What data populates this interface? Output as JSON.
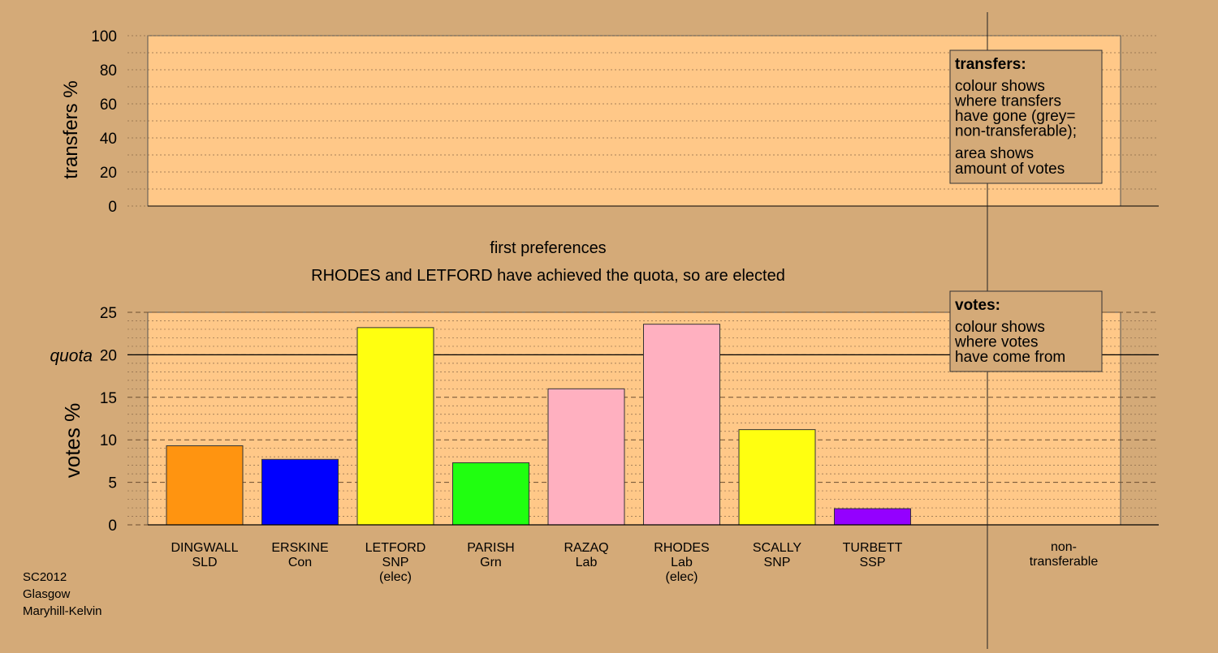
{
  "chart_data": [
    {
      "type": "area",
      "ylabel": "transfers %",
      "ylim": [
        0,
        100
      ],
      "yticks": [
        0,
        20,
        40,
        60,
        80,
        100
      ],
      "grid": true,
      "legend": {
        "title": "transfers:",
        "lines1": [
          "colour shows",
          "where transfers",
          "have gone (grey=",
          "non-transferable);"
        ],
        "lines2": [
          "area shows",
          "amount of votes"
        ]
      },
      "values": []
    },
    {
      "type": "bar",
      "ylabel": "votes %",
      "ylim": [
        0,
        25
      ],
      "yticks": [
        0,
        5,
        10,
        15,
        20,
        25
      ],
      "quota_label": "quota",
      "quota_value": 20,
      "grid": true,
      "categories": [
        {
          "name": "DINGWALL",
          "party": "SLD",
          "note": ""
        },
        {
          "name": "ERSKINE",
          "party": "Con",
          "note": ""
        },
        {
          "name": "LETFORD",
          "party": "SNP",
          "note": "(elec)"
        },
        {
          "name": "PARISH",
          "party": "Grn",
          "note": ""
        },
        {
          "name": "RAZAQ",
          "party": "Lab",
          "note": ""
        },
        {
          "name": "RHODES",
          "party": "Lab",
          "note": "(elec)"
        },
        {
          "name": "SCALLY",
          "party": "SNP",
          "note": ""
        },
        {
          "name": "TURBETT",
          "party": "SSP",
          "note": ""
        }
      ],
      "values": [
        9.3,
        7.7,
        23.2,
        7.3,
        16.0,
        23.6,
        11.2,
        1.9
      ],
      "colors": [
        "#ff9410",
        "#0000ff",
        "#ffff10",
        "#20ff10",
        "#ffb0c0",
        "#ffb0c0",
        "#ffff10",
        "#9400ff"
      ],
      "nontransferable_label": [
        "non-",
        "transferable"
      ],
      "nontransferable_value": 0,
      "legend": {
        "title": "votes:",
        "lines": [
          "colour shows",
          "where votes",
          "have come from"
        ]
      }
    }
  ],
  "stage_title": "first preferences",
  "status_text": "RHODES and LETFORD have achieved the quota, so are elected",
  "footer": [
    "SC2012",
    "Glasgow",
    "Maryhill-Kelvin"
  ],
  "colors": {
    "background": "#d4aa78",
    "plot_fill": "#ffc888"
  }
}
